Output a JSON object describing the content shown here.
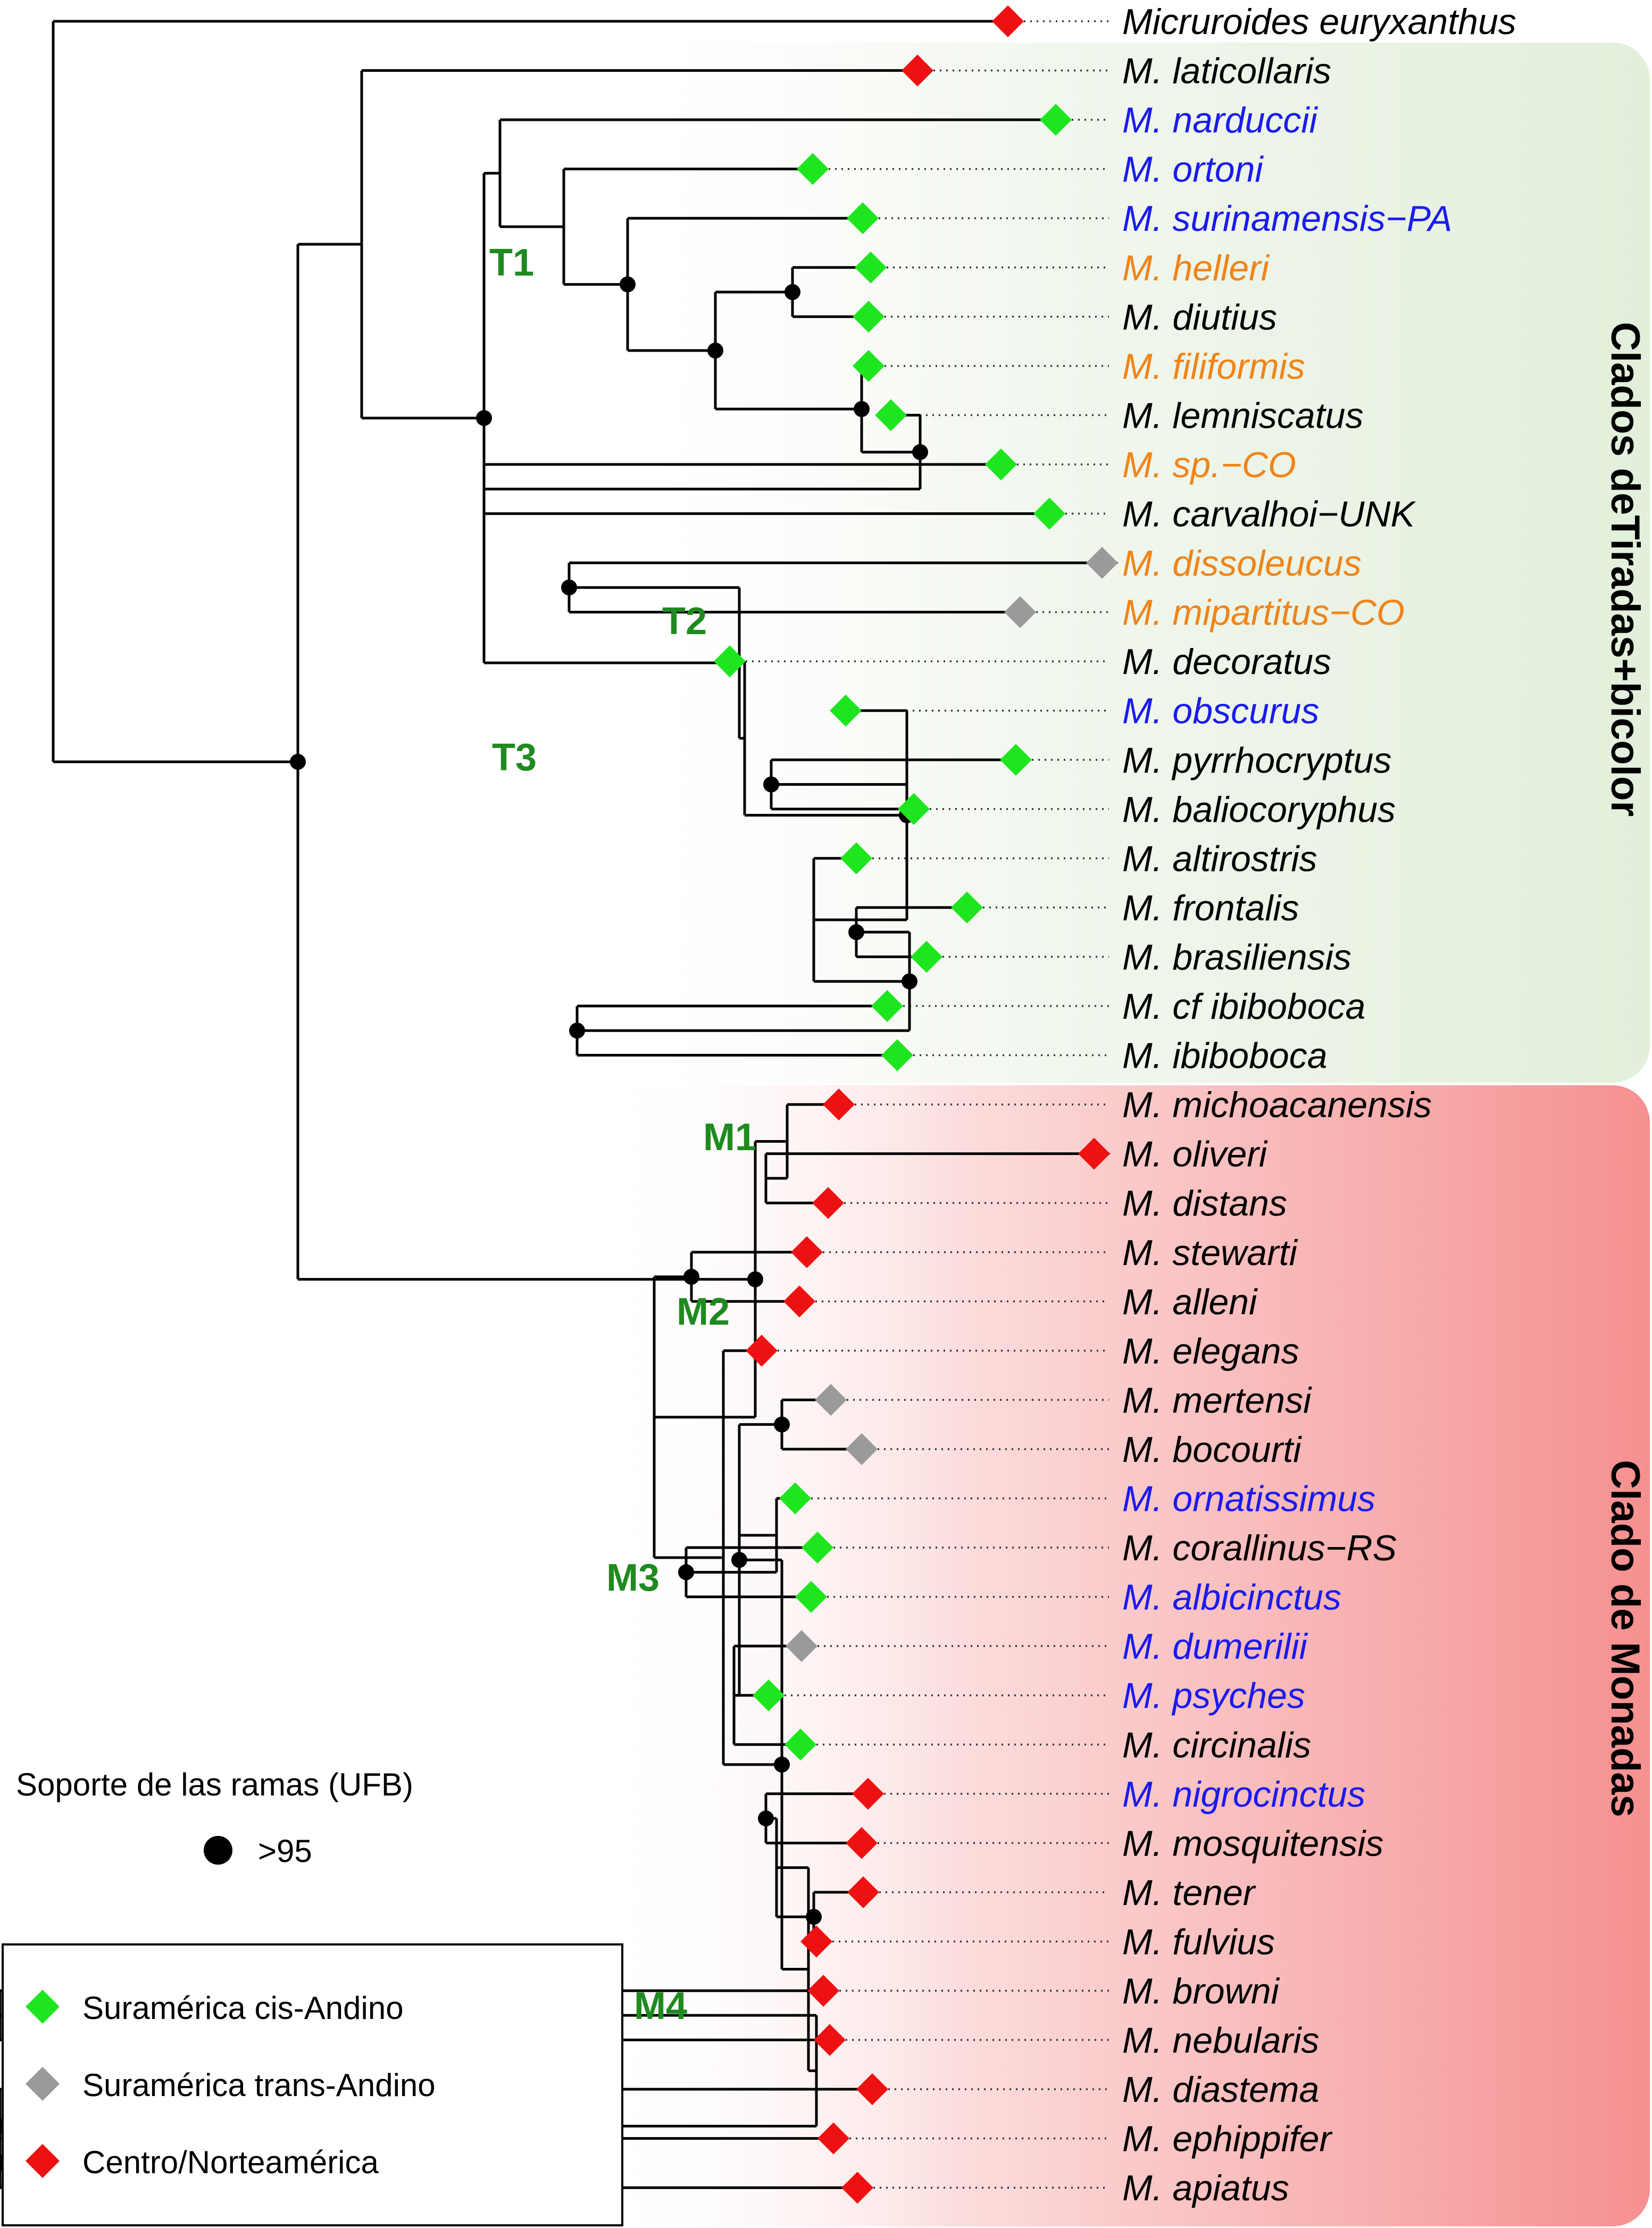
{
  "colors": {
    "black": "#000000",
    "cis": "#1ee61e",
    "trans": "#9a9a9a",
    "centro": "#ee1111",
    "blue": "#1a1af0",
    "orange": "#f08418",
    "cladeLabel": "#1f8a1f",
    "greenBox": "#e2efdb",
    "redBox": "#f59090"
  },
  "taxa": [
    {
      "name": "Micruroides euryxanthus",
      "color": "black",
      "marker": "centro"
    },
    {
      "name": "M. laticollaris",
      "color": "black",
      "marker": "centro"
    },
    {
      "name": "M. narduccii",
      "color": "blue",
      "marker": "cis"
    },
    {
      "name": "M. ortoni",
      "color": "blue",
      "marker": "cis"
    },
    {
      "name": "M. surinamensis−PA",
      "color": "blue",
      "marker": "cis"
    },
    {
      "name": "M. helleri",
      "color": "orange",
      "marker": "cis"
    },
    {
      "name": "M. diutius",
      "color": "black",
      "marker": "cis"
    },
    {
      "name": "M. filiformis",
      "color": "orange",
      "marker": "cis"
    },
    {
      "name": "M. lemniscatus",
      "color": "black",
      "marker": "cis"
    },
    {
      "name": "M. sp.−CO",
      "color": "orange",
      "marker": "cis"
    },
    {
      "name": "M. carvalhoi−UNK",
      "color": "black",
      "marker": "cis"
    },
    {
      "name": "M. dissoleucus",
      "color": "orange",
      "marker": "trans"
    },
    {
      "name": "M. mipartitus−CO",
      "color": "orange",
      "marker": "trans"
    },
    {
      "name": "M. decoratus",
      "color": "black",
      "marker": "cis"
    },
    {
      "name": "M. obscurus",
      "color": "blue",
      "marker": "cis"
    },
    {
      "name": "M. pyrrhocryptus",
      "color": "black",
      "marker": "cis"
    },
    {
      "name": "M. baliocoryphus",
      "color": "black",
      "marker": "cis"
    },
    {
      "name": "M. altirostris",
      "color": "black",
      "marker": "cis"
    },
    {
      "name": "M. frontalis",
      "color": "black",
      "marker": "cis"
    },
    {
      "name": "M. brasiliensis",
      "color": "black",
      "marker": "cis"
    },
    {
      "name": "M. cf ibiboboca",
      "color": "black",
      "marker": "cis"
    },
    {
      "name": "M. ibiboboca",
      "color": "black",
      "marker": "cis"
    },
    {
      "name": "M. michoacanensis",
      "color": "black",
      "marker": "centro"
    },
    {
      "name": "M. oliveri",
      "color": "black",
      "marker": "centro"
    },
    {
      "name": "M. distans",
      "color": "black",
      "marker": "centro"
    },
    {
      "name": "M. stewarti",
      "color": "black",
      "marker": "centro"
    },
    {
      "name": "M. alleni",
      "color": "black",
      "marker": "centro"
    },
    {
      "name": "M. elegans",
      "color": "black",
      "marker": "centro"
    },
    {
      "name": "M. mertensi",
      "color": "black",
      "marker": "trans"
    },
    {
      "name": "M. bocourti",
      "color": "black",
      "marker": "trans"
    },
    {
      "name": "M. ornatissimus",
      "color": "blue",
      "marker": "cis"
    },
    {
      "name": "M. corallinus−RS",
      "color": "black",
      "marker": "cis"
    },
    {
      "name": "M. albicinctus",
      "color": "blue",
      "marker": "cis"
    },
    {
      "name": "M. dumerilii",
      "color": "blue",
      "marker": "trans"
    },
    {
      "name": "M. psyches",
      "color": "blue",
      "marker": "cis"
    },
    {
      "name": "M. circinalis",
      "color": "black",
      "marker": "cis"
    },
    {
      "name": "M. nigrocinctus",
      "color": "blue",
      "marker": "centro"
    },
    {
      "name": "M. mosquitensis",
      "color": "black",
      "marker": "centro"
    },
    {
      "name": "M. tener",
      "color": "black",
      "marker": "centro"
    },
    {
      "name": "M. fulvius",
      "color": "black",
      "marker": "centro"
    },
    {
      "name": "M. browni",
      "color": "black",
      "marker": "centro"
    },
    {
      "name": "M. nebularis",
      "color": "black",
      "marker": "centro"
    },
    {
      "name": "M. diastema",
      "color": "black",
      "marker": "centro"
    },
    {
      "name": "M. ephippifer",
      "color": "black",
      "marker": "centro"
    },
    {
      "name": "M. apiatus",
      "color": "black",
      "marker": "centro"
    }
  ],
  "tree": {
    "ch": [
      {
        "t": 0
      },
      {
        "s": 1,
        "ch": [
          {
            "ch": [
              {
                "t": 1
              },
              {
                "s": 1,
                "ch": [
                  {
                    "ch": [
                      {
                        "t": 2
                      },
                      {
                        "ch": [
                          {
                            "t": 3
                          },
                          {
                            "s": 1,
                            "ch": [
                              {
                                "t": 4
                              },
                              {
                                "s": 1,
                                "ch": [
                                  {
                                    "s": 1,
                                    "ch": [
                                      {
                                        "t": 5
                                      },
                                      {
                                        "t": 6
                                      }
                                    ]
                                  },
                                  {
                                    "s": 1,
                                    "ch": [
                                      {
                                        "t": 7
                                      },
                                      {
                                        "s": 1,
                                        "ch": [
                                          {
                                            "t": 8
                                          },
                                          {
                                            "ch": [
                                              {
                                                "t": 9
                                              },
                                              {
                                                "t": 10
                                              }
                                            ]
                                          }
                                        ]
                                      }
                                    ]
                                  }
                                ]
                              }
                            ]
                          }
                        ]
                      }
                    ]
                  },
                  {
                    "ch": [
                      {
                        "s": 1,
                        "ch": [
                          {
                            "t": 11
                          },
                          {
                            "t": 12
                          }
                        ]
                      },
                      {
                        "ch": [
                          {
                            "t": 13
                          },
                          {
                            "s": 1,
                            "ch": [
                              {
                                "t": 14
                              },
                              {
                                "s": 1,
                                "ch": [
                                  {
                                    "t": 15
                                  },
                                  {
                                    "t": 16
                                  }
                                ]
                              },
                              {
                                "ch": [
                                  {
                                    "t": 17
                                  },
                                  {
                                    "s": 1,
                                    "ch": [
                                      {
                                        "s": 1,
                                        "ch": [
                                          {
                                            "t": 18
                                          },
                                          {
                                            "t": 19
                                          }
                                        ]
                                      },
                                      {
                                        "s": 1,
                                        "ch": [
                                          {
                                            "t": 20
                                          },
                                          {
                                            "t": 21
                                          }
                                        ]
                                      }
                                    ]
                                  }
                                ]
                              }
                            ]
                          }
                        ]
                      }
                    ]
                  }
                ]
              }
            ]
          },
          {
            "s": 1,
            "ch": [
              {
                "ch": [
                  {
                    "t": 22
                  },
                  {
                    "ch": [
                      {
                        "t": 23
                      },
                      {
                        "t": 24
                      }
                    ]
                  }
                ]
              },
              {
                "ch": [
                  {
                    "s": 1,
                    "ch": [
                      {
                        "t": 25
                      },
                      {
                        "t": 26
                      }
                    ]
                  },
                  {
                    "ch": [
                      {
                        "t": 27
                      },
                      {
                        "s": 1,
                        "ch": [
                          {
                            "s": 1,
                            "ch": [
                              {
                                "s": 1,
                                "ch": [
                                  {
                                    "t": 28
                                  },
                                  {
                                    "t": 29
                                  }
                                ]
                              },
                              {
                                "ch": [
                                  {
                                    "t": 30
                                  },
                                  {
                                    "s": 1,
                                    "ch": [
                                      {
                                        "t": 31
                                      },
                                      {
                                        "t": 32
                                      }
                                    ]
                                  }
                                ]
                              },
                              {
                                "ch": [
                                  {
                                    "t": 33
                                  },
                                  {
                                    "t": 34
                                  },
                                  {
                                    "t": 35
                                  }
                                ]
                              }
                            ]
                          },
                          {
                            "ch": [
                              {
                                "ch": [
                                  {
                                    "s": 1,
                                    "ch": [
                                      {
                                        "t": 36
                                      },
                                      {
                                        "t": 37
                                      }
                                    ]
                                  },
                                  {
                                    "s": 1,
                                    "ch": [
                                      {
                                        "t": 38
                                      },
                                      {
                                        "t": 39
                                      }
                                    ]
                                  }
                                ]
                              },
                              {
                                "ch": [
                                  {
                                    "ch": [
                                      {
                                        "t": 40
                                      },
                                      {
                                        "t": 41
                                      }
                                    ]
                                  },
                                  {
                                    "s": 1,
                                    "ch": [
                                      {
                                        "t": 42
                                      },
                                      {
                                        "s": 1,
                                        "ch": [
                                          {
                                            "t": 43
                                          },
                                          {
                                            "t": 44
                                          }
                                        ]
                                      }
                                    ]
                                  }
                                ]
                              }
                            ]
                          }
                        ]
                      }
                    ]
                  }
                ]
              }
            ]
          }
        ]
      }
    ]
  },
  "cladeLabels": [
    "T1",
    "T2",
    "T3",
    "M1",
    "M2",
    "M3",
    "M4"
  ],
  "sideLabels": {
    "top": "Clados deTiradas+bicolor",
    "bottom": "Clado de Monadas"
  },
  "support": {
    "title": "Soporte de las ramas (UFB)",
    "value": ">95"
  },
  "legend": [
    {
      "label": "Suramérica cis-Andino",
      "marker": "cis"
    },
    {
      "label": "Suramérica trans-Andino",
      "marker": "trans"
    },
    {
      "label": "Centro/Norteamérica",
      "marker": "centro"
    }
  ]
}
